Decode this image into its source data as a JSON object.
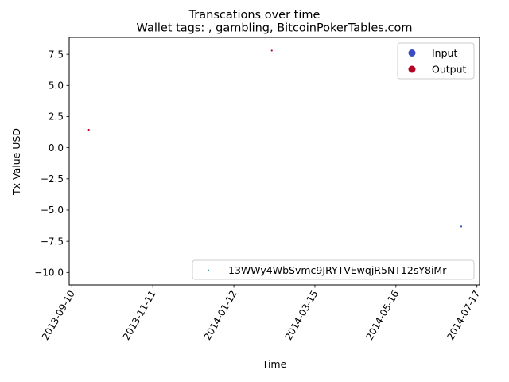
{
  "chart_data": {
    "type": "scatter",
    "suptitle": "Transcations over time",
    "title": "Wallet tags: , gambling, BitcoinPokerTables.com",
    "xlabel": "Time",
    "ylabel": "Tx Value USD",
    "xlim": [
      "2013-09-08",
      "2014-07-19"
    ],
    "ylim": [
      -11.0,
      8.85
    ],
    "x_ticks": [
      "2013-09-10",
      "2013-11-11",
      "2014-01-12",
      "2014-03-15",
      "2014-05-16",
      "2014-07-17"
    ],
    "y_ticks": [
      7.5,
      5.0,
      2.5,
      0.0,
      -2.5,
      -5.0,
      -7.5,
      -10.0
    ],
    "y_tick_labels": [
      "7.5",
      "5.0",
      "2.5",
      "0.0",
      "−2.5",
      "−5.0",
      "−7.5",
      "−10.0"
    ],
    "points": [
      {
        "x": "2013-09-23",
        "y": 1.45,
        "type": "Output"
      },
      {
        "x": "2014-02-10",
        "y": 7.8,
        "type": "Output"
      },
      {
        "x": "2014-07-05",
        "y": -6.3,
        "type": "Input"
      }
    ],
    "legend_types": {
      "placement": "upper right",
      "items": [
        {
          "label": "Input",
          "color": "#3b4cc0"
        },
        {
          "label": "Output",
          "color": "#b40426"
        }
      ]
    },
    "legend_wallet": {
      "placement": "lower right",
      "items": [
        {
          "label": "13WWy4WbSvmc9JRYTVEwqjR5NT12sY8iMr",
          "color": "#1f8a8a"
        }
      ]
    },
    "grid": false
  }
}
